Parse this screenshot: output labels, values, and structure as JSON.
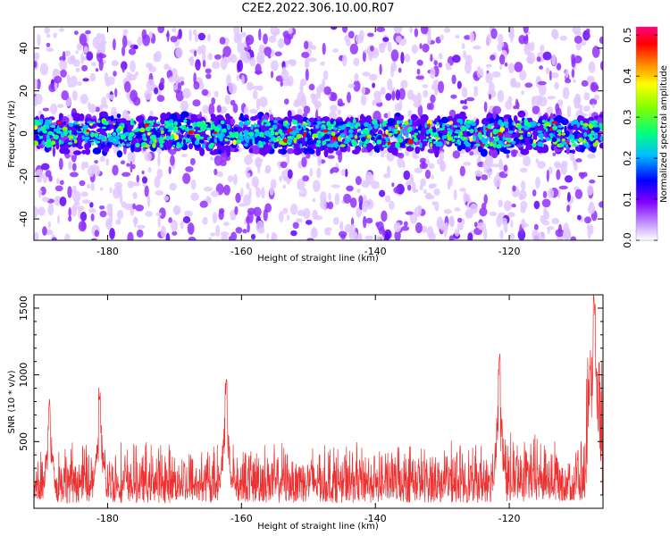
{
  "title": "C2E2.2022.306.10.00.R07",
  "chart_data": [
    {
      "type": "heatmap",
      "xlabel": "Height of straight line (km)",
      "ylabel": "Frequency (Hz)",
      "xlim": [
        -191,
        -106
      ],
      "ylim": [
        -50,
        50
      ],
      "xticks": [
        -180,
        -160,
        -140,
        -120
      ],
      "yticks": [
        -40,
        -20,
        0,
        20,
        40
      ],
      "xtick_labels": [
        "-180",
        "-160",
        "-140",
        "-120"
      ],
      "ytick_labels": [
        "-40",
        "-20",
        "0",
        "20",
        "40"
      ],
      "colorbar": {
        "label": "Normalized spectral amplitude",
        "range": [
          0.0,
          0.52
        ],
        "ticks": [
          0.0,
          0.1,
          0.2,
          0.3,
          0.4,
          0.5
        ],
        "tick_labels": [
          "0.0",
          "0.1",
          "0.2",
          "0.3",
          "0.4",
          "0.5"
        ],
        "colors": [
          "#ffffff",
          "#d0b0ff",
          "#8000ff",
          "#0000ff",
          "#00c0ff",
          "#00ff80",
          "#80ff00",
          "#ffff00",
          "#ff8000",
          "#ff0000",
          "#ff0080"
        ]
      },
      "description_values": {
        "band_center_hz": 0,
        "band_half_width_hz": 8,
        "band_peak_amplitude": 0.45,
        "background_amplitude": 0.05
      },
      "grid": false
    },
    {
      "type": "line",
      "xlabel": "Height of straight line (km)",
      "ylabel": "SNR (10 * v/v)",
      "xlim": [
        -191,
        -106
      ],
      "ylim": [
        0,
        1600
      ],
      "xticks": [
        -180,
        -160,
        -140,
        -120
      ],
      "yticks": [
        500,
        1000,
        1500
      ],
      "xtick_labels": [
        "-180",
        "-160",
        "-140",
        "-120"
      ],
      "ytick_labels": [
        "500",
        "1000",
        "1500"
      ],
      "series": [
        {
          "color": "#ee3030",
          "baseline": 200,
          "noise_amplitude": 250,
          "peaks": [
            {
              "x": -188.7,
              "y": 840
            },
            {
              "x": -181.2,
              "y": 920
            },
            {
              "x": -162.3,
              "y": 990
            },
            {
              "x": -121.5,
              "y": 1160
            },
            {
              "x": -107.3,
              "y": 1600
            }
          ]
        }
      ],
      "grid": false
    }
  ]
}
